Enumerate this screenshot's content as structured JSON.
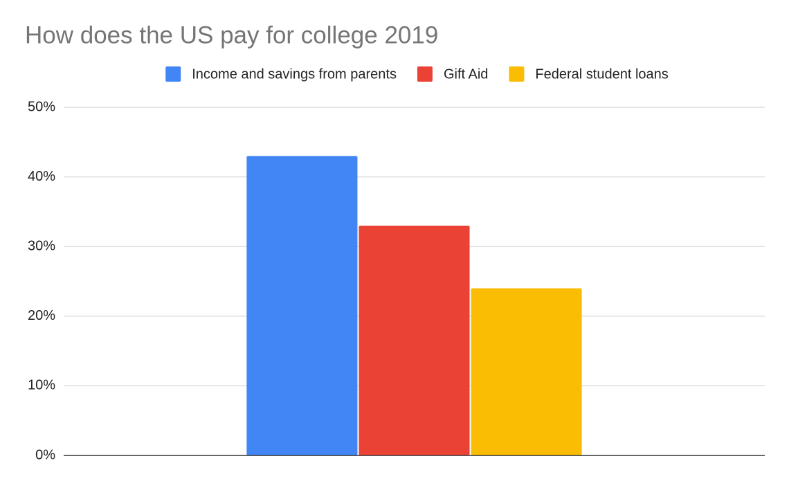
{
  "chart_data": {
    "type": "bar",
    "title": "How does the US pay for college 2019",
    "categories": [
      null
    ],
    "series": [
      {
        "name": "Income and savings from parents",
        "color": "#4285f4",
        "values": [
          43
        ]
      },
      {
        "name": "Gift Aid",
        "color": "#ea4335",
        "values": [
          33
        ]
      },
      {
        "name": "Federal student loans",
        "color": "#fbbc04",
        "values": [
          24
        ]
      }
    ],
    "ylim": [
      0,
      50
    ],
    "yticks": [
      {
        "value": 0,
        "label": "0%"
      },
      {
        "value": 10,
        "label": "10%"
      },
      {
        "value": 20,
        "label": "20%"
      },
      {
        "value": 30,
        "label": "30%"
      },
      {
        "value": 40,
        "label": "40%"
      },
      {
        "value": 50,
        "label": "50%"
      }
    ],
    "grid": true,
    "legend": "top"
  }
}
